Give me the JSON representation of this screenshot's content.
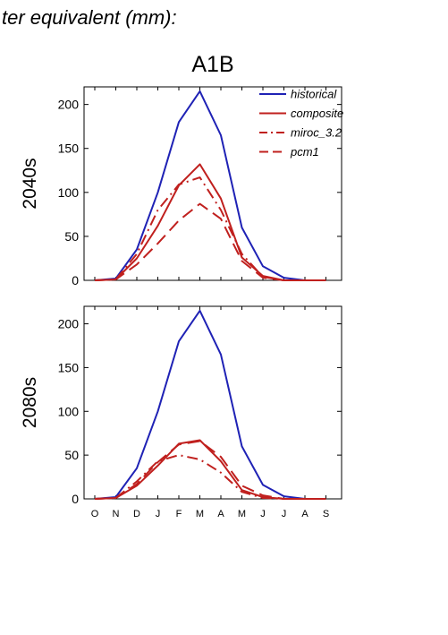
{
  "header_text": "ter equivalent (mm):",
  "scenario_title": "A1B",
  "colors": {
    "historical": "#1f22b5",
    "future": "#c0201e"
  },
  "chart_data": [
    {
      "type": "line",
      "panel_label": "2040s",
      "categories": [
        "O",
        "N",
        "D",
        "J",
        "F",
        "M",
        "A",
        "M",
        "J",
        "J",
        "A",
        "S"
      ],
      "ylim": [
        0,
        220
      ],
      "yticks": [
        0,
        50,
        100,
        150,
        200
      ],
      "legend": "top-right",
      "series": [
        {
          "name": "historical",
          "style": "solid",
          "color_key": "historical",
          "values": [
            0,
            2,
            35,
            100,
            180,
            215,
            165,
            60,
            16,
            3,
            0,
            0
          ]
        },
        {
          "name": "composite",
          "style": "solid",
          "color_key": "future",
          "values": [
            0,
            1,
            25,
            62,
            108,
            132,
            93,
            26,
            5,
            0,
            0,
            0
          ]
        },
        {
          "name": "miroc_3.2",
          "style": "dashdot",
          "color_key": "future",
          "values": [
            0,
            1,
            30,
            80,
            109,
            117,
            80,
            30,
            4,
            0,
            0,
            0
          ]
        },
        {
          "name": "pcm1",
          "style": "dash",
          "color_key": "future",
          "values": [
            0,
            1,
            18,
            42,
            68,
            87,
            70,
            22,
            3,
            0,
            0,
            0
          ]
        }
      ]
    },
    {
      "type": "line",
      "panel_label": "2080s",
      "categories": [
        "O",
        "N",
        "D",
        "J",
        "F",
        "M",
        "A",
        "M",
        "J",
        "J",
        "A",
        "S"
      ],
      "ylim": [
        0,
        220
      ],
      "yticks": [
        0,
        50,
        100,
        150,
        200
      ],
      "series": [
        {
          "name": "historical",
          "style": "solid",
          "color_key": "historical",
          "values": [
            0,
            2,
            35,
            100,
            180,
            215,
            165,
            60,
            16,
            3,
            0,
            0
          ]
        },
        {
          "name": "composite",
          "style": "solid",
          "color_key": "future",
          "values": [
            0,
            1,
            15,
            38,
            63,
            67,
            43,
            10,
            2,
            0,
            0,
            0
          ]
        },
        {
          "name": "miroc_3.2",
          "style": "dashdot",
          "color_key": "future",
          "values": [
            0,
            1,
            20,
            43,
            50,
            45,
            30,
            8,
            1,
            0,
            0,
            0
          ]
        },
        {
          "name": "pcm1",
          "style": "dash",
          "color_key": "future",
          "values": [
            0,
            1,
            17,
            42,
            62,
            66,
            48,
            15,
            4,
            0,
            0,
            0
          ]
        }
      ]
    }
  ]
}
